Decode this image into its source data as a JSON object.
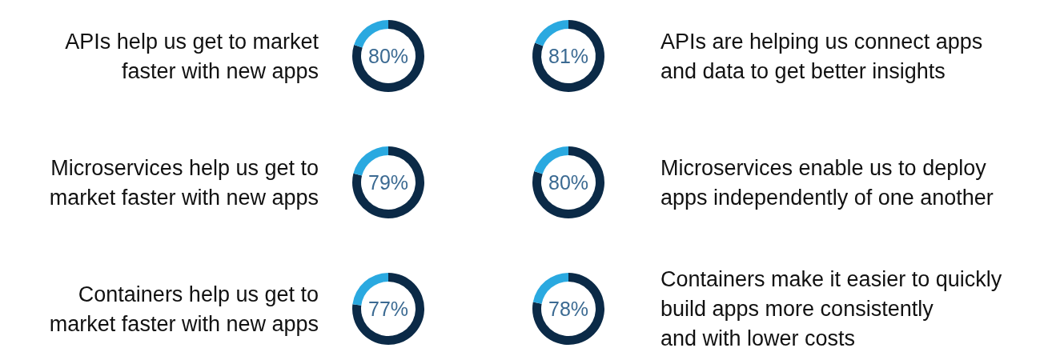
{
  "chart_data": [
    {
      "type": "donut",
      "title": "APIs help us get to market\nfaster with new apps",
      "categories": [
        null,
        null
      ],
      "values": [
        80,
        20
      ],
      "colors": [
        "#0b2a47",
        "#2aa9e0"
      ],
      "value_labels": [
        "80%",
        null
      ]
    },
    {
      "type": "donut",
      "title": "APIs are helping us connect apps\nand data to get better insights",
      "categories": [
        null,
        null
      ],
      "values": [
        81,
        19
      ],
      "colors": [
        "#0b2a47",
        "#2aa9e0"
      ],
      "value_labels": [
        "81%",
        null
      ]
    },
    {
      "type": "donut",
      "title": "Microservices help us get to\nmarket faster with new apps",
      "categories": [
        null,
        null
      ],
      "values": [
        79,
        21
      ],
      "colors": [
        "#0b2a47",
        "#2aa9e0"
      ],
      "value_labels": [
        "79%",
        null
      ]
    },
    {
      "type": "donut",
      "title": "Microservices enable us to deploy\napps independently of one another",
      "categories": [
        null,
        null
      ],
      "values": [
        80,
        20
      ],
      "colors": [
        "#0b2a47",
        "#2aa9e0"
      ],
      "value_labels": [
        "80%",
        null
      ]
    },
    {
      "type": "donut",
      "title": "Containers help us get to\nmarket faster with new apps",
      "categories": [
        null,
        null
      ],
      "values": [
        77,
        23
      ],
      "colors": [
        "#0b2a47",
        "#2aa9e0"
      ],
      "value_labels": [
        "77%",
        null
      ]
    },
    {
      "type": "donut",
      "title": "Containers make it easier to quickly\nbuild apps more consistently\nand with lower costs",
      "categories": [
        null,
        null
      ],
      "values": [
        78,
        22
      ],
      "colors": [
        "#0b2a47",
        "#2aa9e0"
      ],
      "value_labels": [
        "78%",
        null
      ]
    }
  ]
}
